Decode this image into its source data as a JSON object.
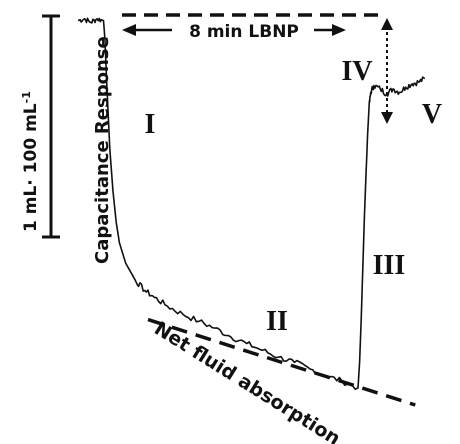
{
  "chart_data": {
    "type": "line",
    "title": "",
    "scale_bar_label": "1 mL· 100 mL",
    "scale_bar_superscript": "-1",
    "ylabel": "Capacitance Response",
    "duration_label": "8 min LBNP",
    "trend_label": "Net fluid absorption",
    "phases": [
      "I",
      "II",
      "III",
      "IV",
      "V"
    ],
    "grid": false,
    "legend": "none",
    "x_unit": "min",
    "y_unit": "mL·100 mL-1",
    "xlim": [
      -0.8,
      10.2
    ],
    "ylim": [
      -2.25,
      0.05
    ],
    "series": [
      {
        "values": [
          [
            -0.8,
            0.0
          ],
          [
            -0.6,
            0.01
          ],
          [
            -0.4,
            -0.01
          ],
          [
            -0.2,
            0.01
          ],
          [
            0.0,
            0.0
          ],
          [
            0.05,
            -0.12
          ],
          [
            0.1,
            -0.35
          ],
          [
            0.15,
            -0.55
          ],
          [
            0.2,
            -0.75
          ],
          [
            0.3,
            -1.0
          ],
          [
            0.4,
            -1.18
          ],
          [
            0.5,
            -1.3
          ],
          [
            0.7,
            -1.42
          ],
          [
            1.0,
            -1.52
          ],
          [
            1.3,
            -1.58
          ],
          [
            1.6,
            -1.62
          ],
          [
            2.0,
            -1.67
          ],
          [
            2.5,
            -1.72
          ],
          [
            3.0,
            -1.76
          ],
          [
            3.5,
            -1.8
          ],
          [
            4.0,
            -1.85
          ],
          [
            4.5,
            -1.89
          ],
          [
            5.0,
            -1.93
          ],
          [
            5.5,
            -1.97
          ],
          [
            6.0,
            -2.0
          ],
          [
            6.5,
            -2.04
          ],
          [
            7.0,
            -2.08
          ],
          [
            7.5,
            -2.11
          ],
          [
            8.0,
            -2.15
          ],
          [
            8.05,
            -2.0
          ],
          [
            8.1,
            -1.75
          ],
          [
            8.15,
            -1.45
          ],
          [
            8.2,
            -1.15
          ],
          [
            8.25,
            -0.9
          ],
          [
            8.3,
            -0.68
          ],
          [
            8.35,
            -0.5
          ],
          [
            8.4,
            -0.42
          ],
          [
            8.5,
            -0.38
          ],
          [
            8.7,
            -0.4
          ],
          [
            8.9,
            -0.43
          ],
          [
            9.1,
            -0.4
          ],
          [
            9.3,
            -0.42
          ],
          [
            9.5,
            -0.39
          ],
          [
            9.7,
            -0.37
          ],
          [
            9.9,
            -0.36
          ],
          [
            10.1,
            -0.34
          ]
        ]
      }
    ],
    "net_fluid_absorption_line": [
      [
        1.4,
        -1.75
      ],
      [
        9.8,
        -2.25
      ]
    ],
    "phase_IV_drop": [
      0.0,
      -0.38
    ]
  }
}
